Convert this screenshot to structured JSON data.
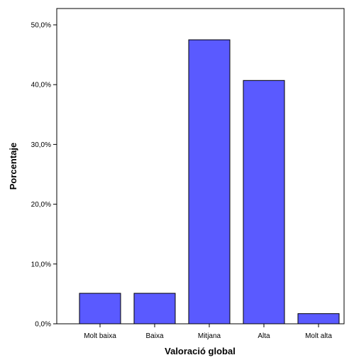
{
  "chart_data": {
    "type": "bar",
    "title": "",
    "xlabel": "Valoració global",
    "ylabel": "Porcentaje",
    "categories": [
      "Molt baixa",
      "Baixa",
      "Mitjana",
      "Alta",
      "Molt alta"
    ],
    "values": [
      5.1,
      5.1,
      47.5,
      40.7,
      1.7
    ],
    "ylim": [
      0,
      50
    ],
    "yticks": [
      0,
      10,
      20,
      30,
      40,
      50
    ],
    "ytick_labels": [
      "0,0%",
      "10,0%",
      "20,0%",
      "30,0%",
      "40,0%",
      "50,0%"
    ],
    "grid": false,
    "legend": "none",
    "colors": {
      "bar_fill": "#5a5aff",
      "bar_stroke": "#000000",
      "axis": "#000000",
      "background": "#ffffff"
    }
  }
}
